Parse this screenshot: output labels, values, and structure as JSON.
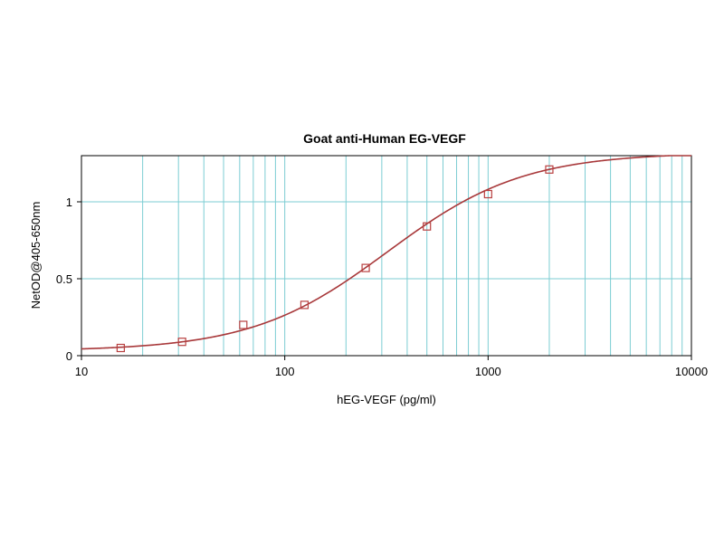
{
  "chart_data": {
    "type": "line",
    "title": "Goat anti-Human EG-VEGF",
    "xlabel": "hEG-VEGF (pg/ml)",
    "ylabel": "NetOD@405-650nm",
    "x_scale": "log",
    "xlim": [
      10,
      10000
    ],
    "ylim": [
      0,
      1.3
    ],
    "x_ticks": [
      10,
      100,
      1000,
      10000
    ],
    "x_tick_labels": [
      "10",
      "100",
      "1000",
      "10000"
    ],
    "y_ticks": [
      0,
      0.5,
      1
    ],
    "y_tick_labels": [
      "0",
      "0.5",
      "1"
    ],
    "grid": true,
    "legend": "none",
    "series": [
      {
        "x": [
          15.6,
          31.25,
          62.5,
          125,
          250,
          500,
          1000,
          2000
        ],
        "y": [
          0.05,
          0.09,
          0.2,
          0.33,
          0.57,
          0.84,
          1.05,
          1.21
        ],
        "fit": {
          "model": "4PL",
          "A": 0.03,
          "D": 1.32,
          "C": 320,
          "B": 1.3
        }
      }
    ],
    "colors": {
      "line": "#a8383a",
      "marker": "#b84040",
      "grid": "#7ccdd3",
      "axis": "#000000"
    },
    "marker": "open-square"
  }
}
